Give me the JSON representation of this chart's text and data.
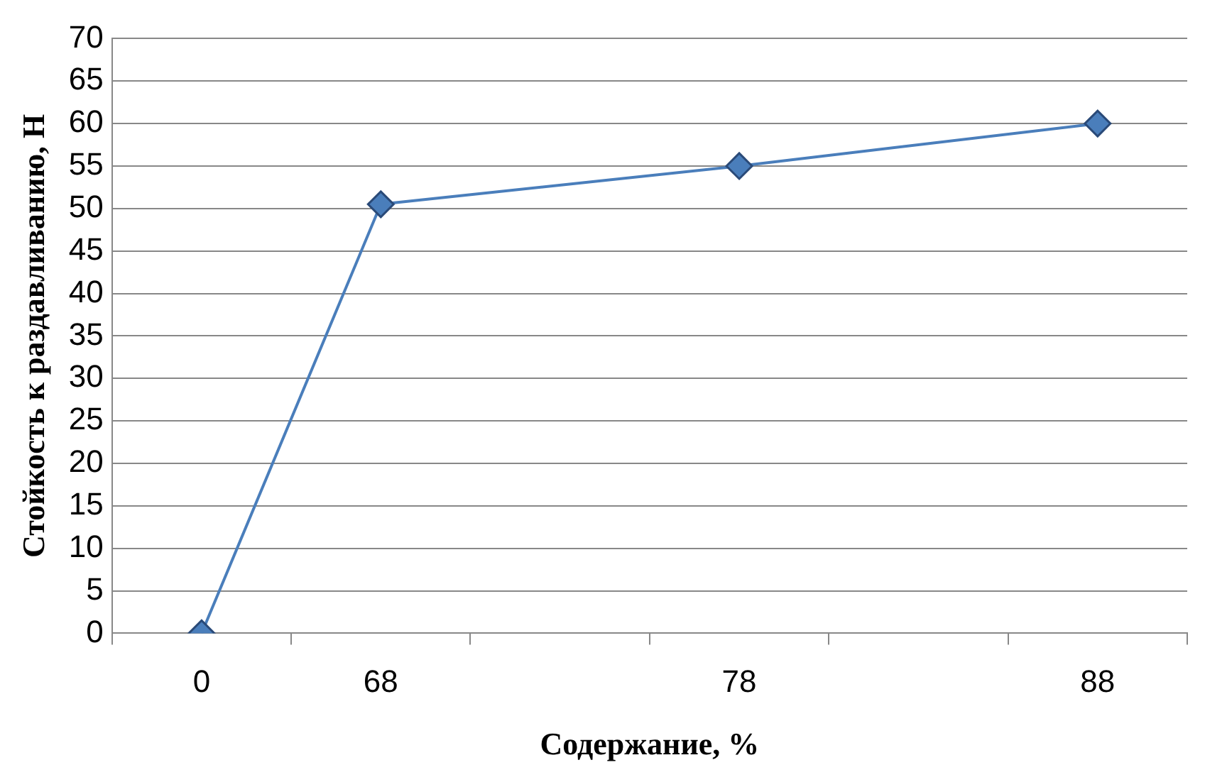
{
  "chart_data": {
    "type": "line",
    "xlabel": "Содержание, %",
    "ylabel": "Стойкость к раздавливанию, Н",
    "categories": [
      "0",
      "68",
      null,
      "78",
      null,
      "88"
    ],
    "series": [
      {
        "color": "#4a7ebb",
        "values": [
          0,
          50.5,
          null,
          55,
          null,
          60
        ]
      }
    ],
    "ylim": [
      0,
      70
    ],
    "yticks": [
      0,
      5,
      10,
      15,
      20,
      25,
      30,
      35,
      40,
      45,
      50,
      55,
      60,
      65,
      70
    ],
    "grid": "y",
    "legend": false,
    "marker": "diamond",
    "line_style": "solid"
  }
}
